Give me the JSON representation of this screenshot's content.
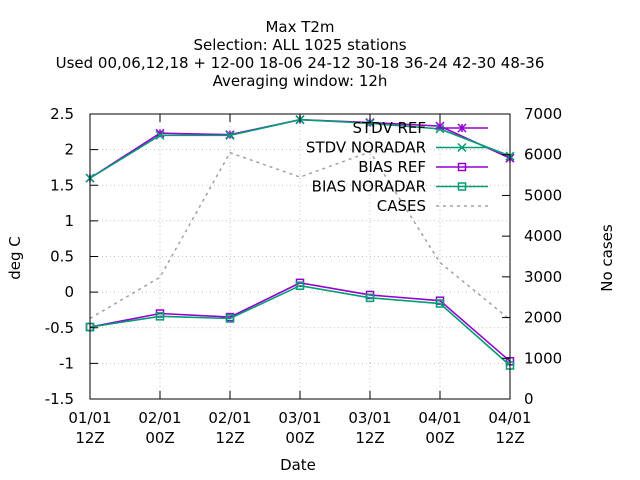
{
  "chart_data": {
    "type": "line",
    "title_lines": [
      "Max T2m",
      "Selection: ALL   1025 stations",
      "Used  00,06,12,18 + 12-00 18-06 24-12 30-18 36-24 42-30 48-36",
      "Averaging window: 12h"
    ],
    "xlabel": "Date",
    "ylabel": "deg C",
    "y2label": "No cases",
    "x_ticks": [
      [
        "01/01",
        "12Z"
      ],
      [
        "02/01",
        "00Z"
      ],
      [
        "02/01",
        "12Z"
      ],
      [
        "03/01",
        "00Z"
      ],
      [
        "03/01",
        "12Z"
      ],
      [
        "04/01",
        "00Z"
      ],
      [
        "04/01",
        "12Z"
      ]
    ],
    "ylim": [
      -1.5,
      2.5
    ],
    "y_ticks": [
      "2.5",
      "2",
      "1.5",
      "1",
      "0.5",
      "0",
      "-0.5",
      "-1",
      "-1.5"
    ],
    "y2lim": [
      0,
      7000
    ],
    "y2_ticks": [
      "7000",
      "6000",
      "5000",
      "4000",
      "3000",
      "2000",
      "1000",
      "0"
    ],
    "grid": true,
    "legend_position": "top-right",
    "series": [
      {
        "name": "STDV REF",
        "axis": "y1",
        "color": "#9400d3",
        "marker": "star",
        "dash": "none",
        "values": [
          1.6,
          2.23,
          2.21,
          2.42,
          2.38,
          2.33,
          1.88
        ]
      },
      {
        "name": "STDV NORADAR",
        "axis": "y1",
        "color": "#009e73",
        "marker": "cross",
        "dash": "none",
        "values": [
          1.6,
          2.2,
          2.2,
          2.42,
          2.37,
          2.29,
          1.91
        ]
      },
      {
        "name": "BIAS REF",
        "axis": "y1",
        "color": "#9400d3",
        "marker": "square",
        "dash": "none",
        "values": [
          -0.49,
          -0.3,
          -0.35,
          0.13,
          -0.04,
          -0.12,
          -0.97
        ]
      },
      {
        "name": "BIAS NORADAR",
        "axis": "y1",
        "color": "#009e73",
        "marker": "square",
        "dash": "none",
        "values": [
          -0.49,
          -0.34,
          -0.37,
          0.09,
          -0.08,
          -0.16,
          -1.03
        ]
      },
      {
        "name": "CASES",
        "axis": "y2",
        "color": "#a0a0a0",
        "marker": "none",
        "dash": "dashed",
        "values": [
          1980,
          2990,
          6050,
          5450,
          6070,
          3350,
          1950
        ]
      }
    ]
  }
}
